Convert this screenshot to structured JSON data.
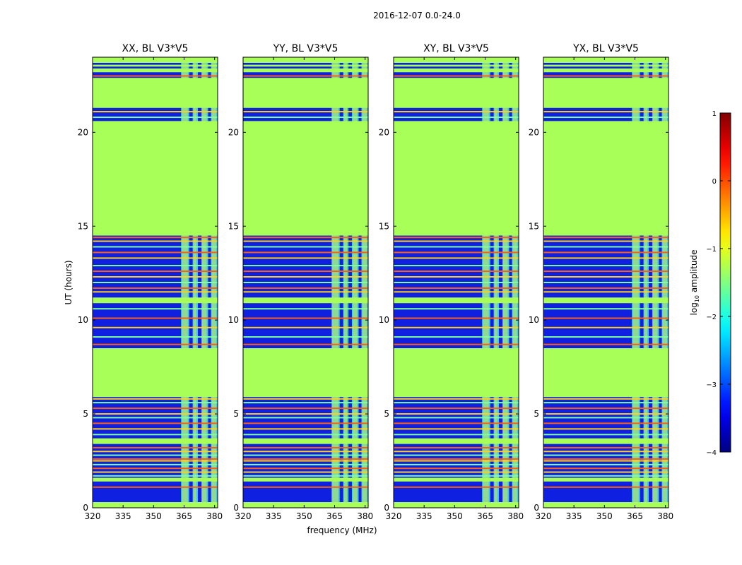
{
  "figure_title": "2016-12-07 0.0-24.0",
  "xlabel": "frequency (MHz)",
  "ylabel": "UT (hours)",
  "colorbar": {
    "label_prefix": "log",
    "label_sub": "10",
    "label_suffix": " amplitude",
    "range": [
      -4,
      1
    ],
    "ticks": [
      1,
      0,
      -1,
      -2,
      -3,
      -4
    ],
    "tick_labels": [
      "1",
      "0",
      "−1",
      "−2",
      "−3",
      "−4"
    ],
    "colormap": "jet"
  },
  "chart_data": [
    {
      "type": "heatmap",
      "title": "XX, BL V3*V5",
      "xlim": [
        320,
        381.5
      ],
      "ylim": [
        0,
        24
      ],
      "xticks": [
        320,
        335,
        350,
        365,
        380
      ],
      "xtick_labels": [
        "320",
        "335",
        "350",
        "365",
        "380"
      ],
      "yticks": [
        0,
        5,
        10,
        15,
        20
      ],
      "ytick_labels": [
        "0",
        "5",
        "10",
        "15",
        "20"
      ]
    },
    {
      "type": "heatmap",
      "title": "YY, BL V3*V5",
      "xlim": [
        320,
        381.5
      ],
      "ylim": [
        0,
        24
      ],
      "xticks": [
        320,
        335,
        350,
        365,
        380
      ],
      "xtick_labels": [
        "320",
        "335",
        "350",
        "365",
        "380"
      ],
      "yticks": [
        0,
        5,
        10,
        15,
        20
      ],
      "ytick_labels": [
        "0",
        "5",
        "10",
        "15",
        "20"
      ]
    },
    {
      "type": "heatmap",
      "title": "XY, BL V3*V5",
      "xlim": [
        320,
        381.5
      ],
      "ylim": [
        0,
        24
      ],
      "xticks": [
        320,
        335,
        350,
        365,
        380
      ],
      "xtick_labels": [
        "320",
        "335",
        "350",
        "365",
        "380"
      ],
      "yticks": [
        0,
        5,
        10,
        15,
        20
      ],
      "ytick_labels": [
        "0",
        "5",
        "10",
        "15",
        "20"
      ]
    },
    {
      "type": "heatmap",
      "title": "YX, BL V3*V5",
      "xlim": [
        320,
        381.5
      ],
      "ylim": [
        0,
        24
      ],
      "xticks": [
        320,
        335,
        350,
        365,
        380
      ],
      "xtick_labels": [
        "320",
        "335",
        "350",
        "365",
        "380"
      ],
      "yticks": [
        0,
        5,
        10,
        15,
        20
      ],
      "ytick_labels": [
        "0",
        "5",
        "10",
        "15",
        "20"
      ]
    }
  ],
  "flagged_time_ranges_hours": [
    [
      0,
      0.3
    ],
    [
      1.4,
      1.6
    ],
    [
      3.4,
      3.7
    ],
    [
      5.9,
      8.5
    ],
    [
      10.9,
      11.2
    ],
    [
      14.5,
      20.6
    ],
    [
      21.3,
      22.9
    ],
    [
      23.2,
      23.4
    ],
    [
      23.5,
      23.6
    ],
    [
      23.7,
      24
    ]
  ],
  "rfi_time_lines_hours": [
    1.1,
    1.7,
    1.9,
    2.1,
    2.3,
    2.5,
    2.6,
    2.8,
    3.0,
    3.2,
    3.9,
    4.2,
    4.5,
    4.8,
    5.0,
    5.3,
    5.6,
    5.8,
    8.7,
    9.1,
    9.6,
    10.1,
    10.6,
    11.5,
    11.7,
    12.0,
    12.3,
    12.6,
    12.9,
    13.3,
    13.6,
    13.9,
    14.2,
    14.4,
    20.8,
    21.1,
    23.0
  ],
  "bright_freq_bands_mhz": [
    [
      363.5,
      367.5
    ],
    [
      369.2,
      371.8
    ],
    [
      373.5,
      376.8
    ],
    [
      378.2,
      381.5
    ]
  ]
}
